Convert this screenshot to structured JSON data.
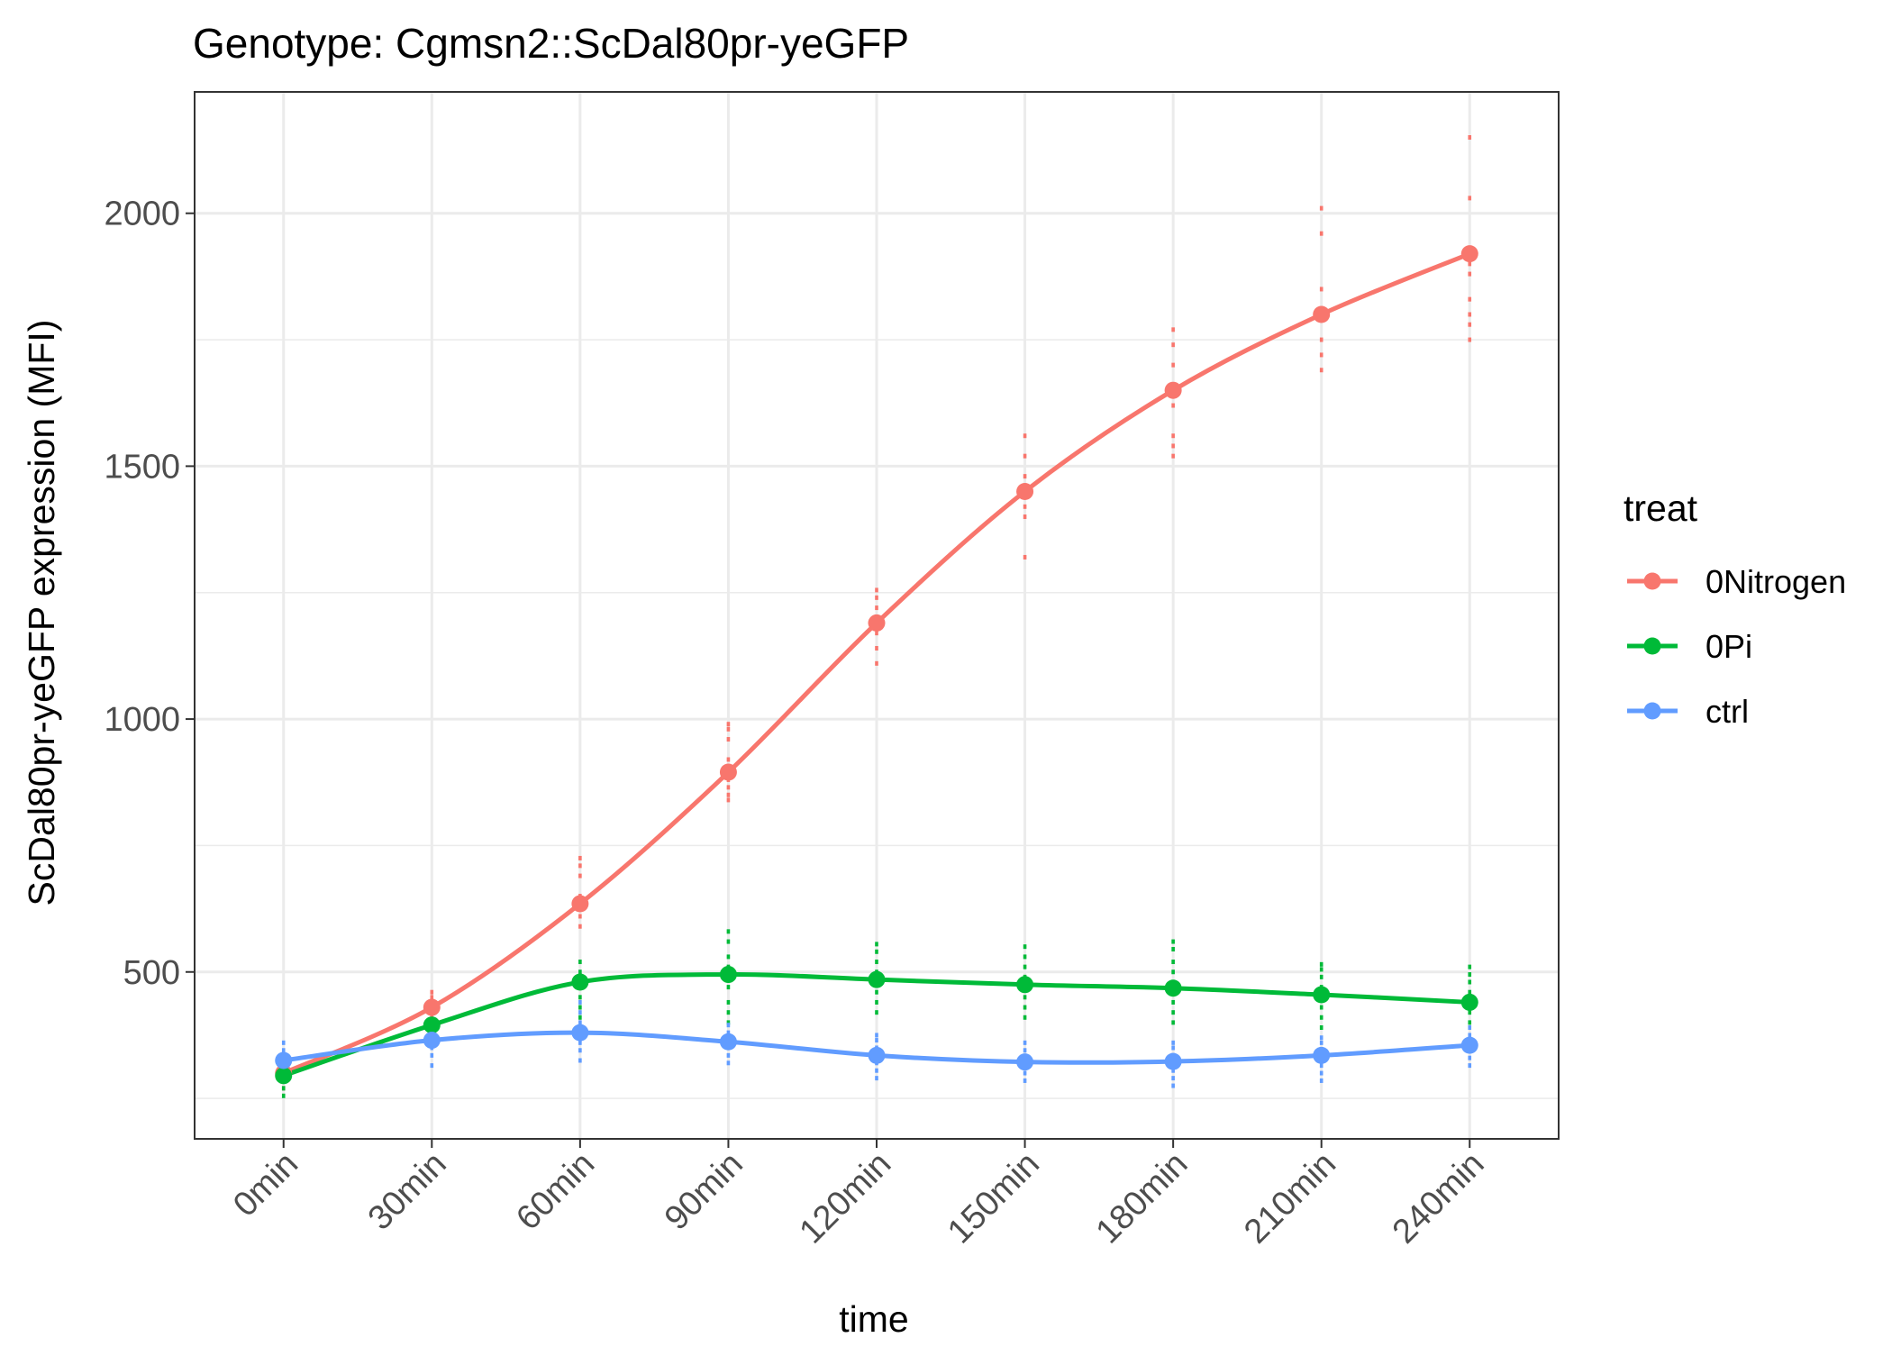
{
  "chart_data": {
    "type": "line",
    "title": "Genotype: Cgmsn2::ScDal80pr-yeGFP",
    "xlabel": "time",
    "ylabel": "ScDal80pr-yeGFP expression (MFI)",
    "categories": [
      "0min",
      "30min",
      "60min",
      "90min",
      "120min",
      "150min",
      "180min",
      "210min",
      "240min"
    ],
    "ylim": [
      170,
      2240
    ],
    "yticks": [
      500,
      1000,
      1500,
      2000
    ],
    "grid": true,
    "legend": {
      "title": "treat",
      "position": "right"
    },
    "series": [
      {
        "name": "0Nitrogen",
        "color": "#F8766D",
        "values": [
          300,
          430,
          635,
          895,
          1190,
          1450,
          1650,
          1800,
          1920
        ],
        "replicates": [
          [
            270,
            285,
            295,
            305,
            320,
            330
          ],
          [
            410,
            420,
            440,
            450,
            460
          ],
          [
            590,
            610,
            630,
            650,
            690,
            710,
            725
          ],
          [
            840,
            850,
            865,
            880,
            920,
            960,
            980,
            990
          ],
          [
            1110,
            1140,
            1170,
            1200,
            1220,
            1240,
            1255
          ],
          [
            1320,
            1400,
            1420,
            1450,
            1480,
            1520,
            1560
          ],
          [
            1520,
            1540,
            1560,
            1620,
            1660,
            1700,
            1740,
            1770
          ],
          [
            1690,
            1720,
            1750,
            1790,
            1810,
            1850,
            1960,
            2010
          ],
          [
            1750,
            1780,
            1800,
            1830,
            1880,
            1900,
            1930,
            2030,
            2150
          ]
        ]
      },
      {
        "name": "0Pi",
        "color": "#00BA38",
        "values": [
          295,
          395,
          480,
          495,
          485,
          475,
          468,
          455,
          440
        ],
        "replicates": [
          [
            255,
            270,
            285,
            300,
            310
          ],
          [
            370,
            385,
            395,
            405,
            420
          ],
          [
            410,
            430,
            450,
            480,
            500,
            520
          ],
          [
            400,
            420,
            440,
            470,
            490,
            510,
            530,
            560,
            580
          ],
          [
            420,
            440,
            460,
            480,
            500,
            520,
            540,
            555
          ],
          [
            410,
            430,
            450,
            470,
            490,
            510,
            530,
            550
          ],
          [
            400,
            420,
            440,
            460,
            480,
            500,
            520,
            545,
            560
          ],
          [
            390,
            410,
            430,
            450,
            470,
            490,
            505,
            515
          ],
          [
            400,
            420,
            440,
            460,
            480,
            495,
            510
          ]
        ]
      },
      {
        "name": "ctrl",
        "color": "#619CFF",
        "values": [
          325,
          365,
          380,
          362,
          335,
          322,
          323,
          335,
          355
        ],
        "replicates": [
          [
            305,
            315,
            325,
            335,
            345,
            360
          ],
          [
            315,
            335,
            350,
            365,
            380,
            400
          ],
          [
            325,
            345,
            360,
            380,
            400,
            420,
            440
          ],
          [
            320,
            335,
            350,
            365,
            380,
            395
          ],
          [
            290,
            305,
            320,
            335,
            350,
            365,
            375
          ],
          [
            285,
            300,
            315,
            330,
            345,
            360
          ],
          [
            275,
            290,
            305,
            320,
            335,
            350,
            360
          ],
          [
            285,
            300,
            315,
            330,
            345,
            360,
            370
          ],
          [
            315,
            330,
            345,
            360,
            375,
            390
          ]
        ]
      }
    ]
  }
}
